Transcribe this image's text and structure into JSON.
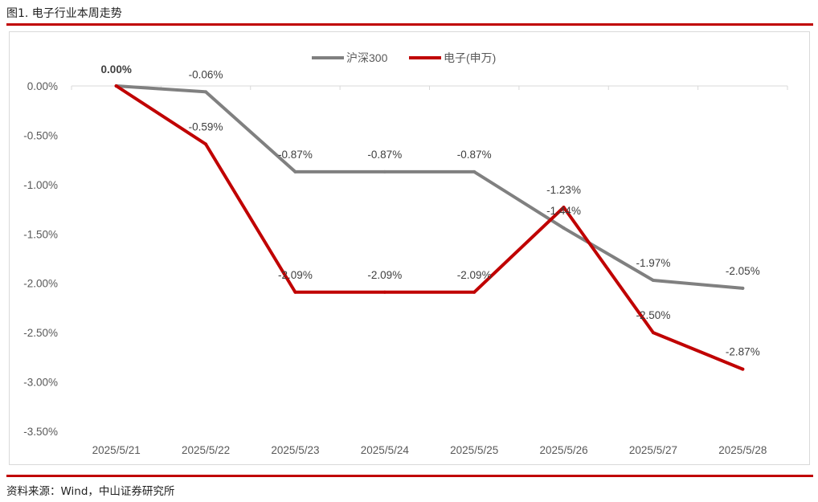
{
  "figure": {
    "title": "图1. 电子行业本周走势",
    "source": "资料来源：Wind，中山证券研究所"
  },
  "colors": {
    "accent": "#c00000",
    "series_hs300": "#808080",
    "series_electronics": "#c00000",
    "gridline": "#d9d9d9"
  },
  "chart_data": {
    "type": "line",
    "title": "",
    "xlabel": "",
    "ylabel": "",
    "x": [
      "2025/5/21",
      "2025/5/22",
      "2025/5/23",
      "2025/5/24",
      "2025/5/25",
      "2025/5/26",
      "2025/5/27",
      "2025/5/28"
    ],
    "ylim": [
      -3.5,
      0
    ],
    "yticks": [
      0,
      -0.5,
      -1.0,
      -1.5,
      -2.0,
      -2.5,
      -3.0,
      -3.5
    ],
    "ytick_labels": [
      "0.00%",
      "-0.50%",
      "-1.00%",
      "-1.50%",
      "-2.00%",
      "-2.50%",
      "-3.00%",
      "-3.50%"
    ],
    "grid": false,
    "legend_position": "top-center",
    "series": [
      {
        "name": "沪深300",
        "color": "#808080",
        "values": [
          0.0,
          -0.06,
          -0.87,
          -0.87,
          -0.87,
          -1.44,
          -1.97,
          -2.05
        ],
        "labels": [
          "0.00%",
          "-0.06%",
          "-0.87%",
          "-0.87%",
          "-0.87%",
          "-1.44%",
          "-1.97%",
          "-2.05%"
        ]
      },
      {
        "name": "电子(申万)",
        "color": "#c00000",
        "values": [
          0.0,
          -0.59,
          -2.09,
          -2.09,
          -2.09,
          -1.23,
          -2.5,
          -2.87
        ],
        "labels": [
          "0.00%",
          "-0.59%",
          "-2.09%",
          "-2.09%",
          "-2.09%",
          "-1.23%",
          "-2.50%",
          "-2.87%"
        ]
      }
    ]
  }
}
